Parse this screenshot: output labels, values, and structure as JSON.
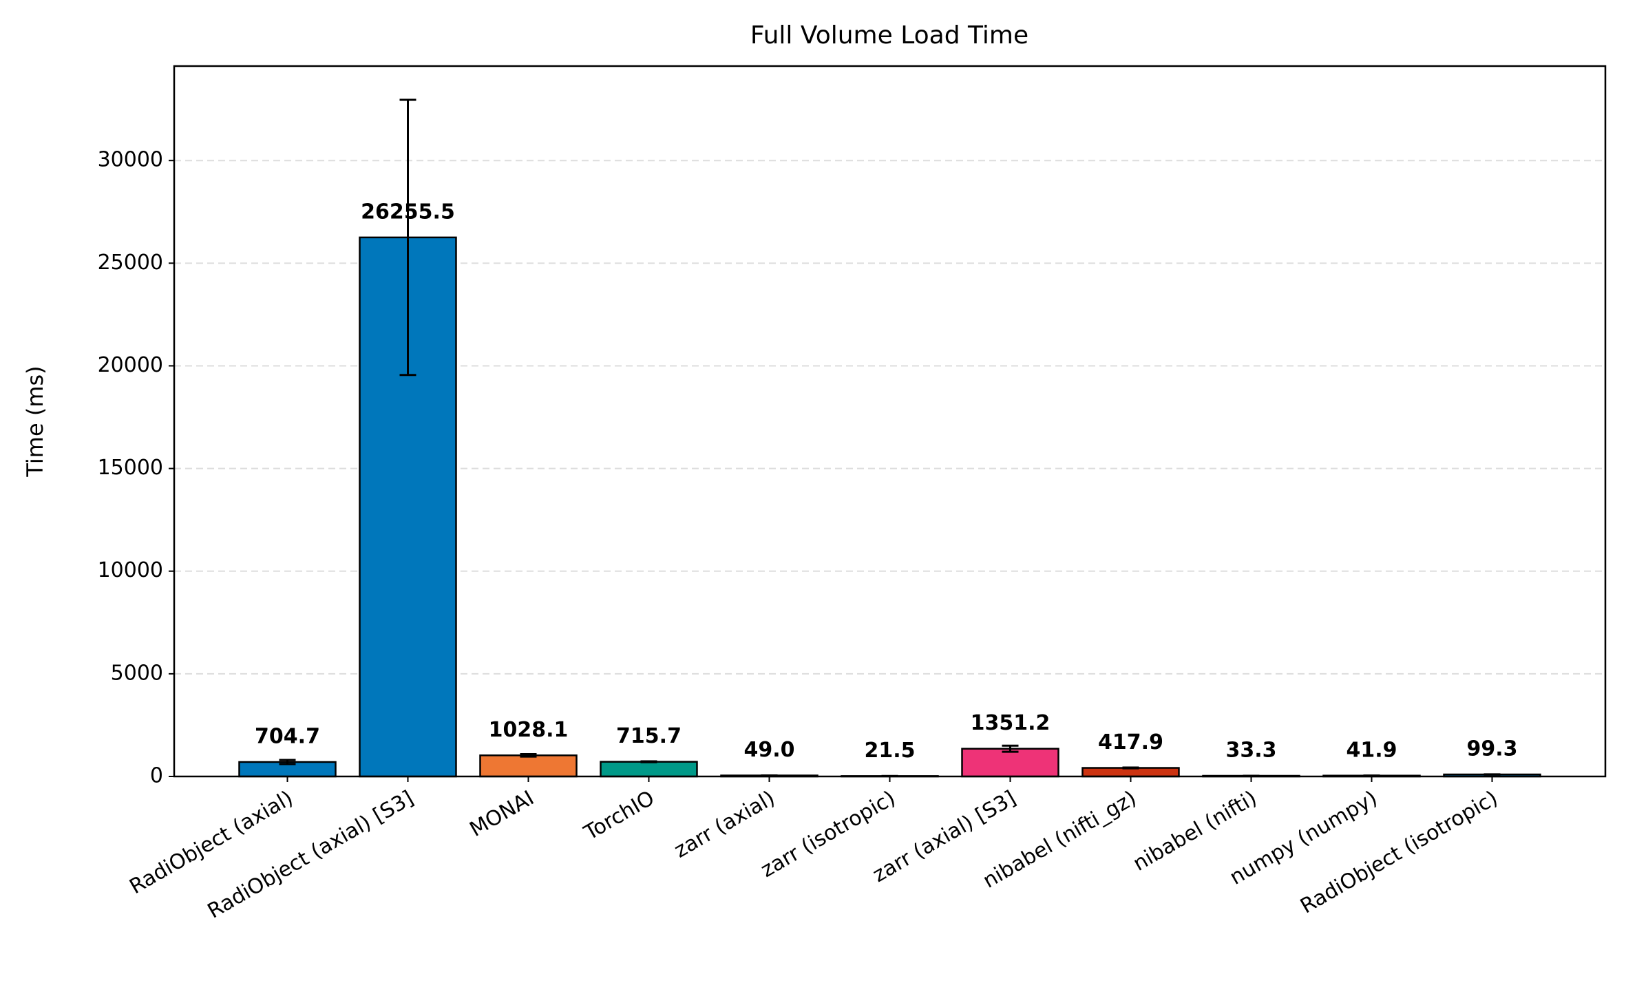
{
  "chart_data": {
    "type": "bar",
    "title": "Full Volume Load Time",
    "y_label": "Time (ms)",
    "categories": [
      "RadiObject (axial)",
      "RadiObject (axial) [S3]",
      "MONAI",
      "TorchIO",
      "zarr (axial)",
      "zarr (isotropic)",
      "zarr (axial) [S3]",
      "nibabel (nifti_gz)",
      "nibabel (nifti)",
      "numpy (numpy)",
      "RadiObject (isotropic)"
    ],
    "values": [
      704.7,
      26255.5,
      1028.1,
      715.7,
      49.0,
      21.5,
      1351.2,
      417.9,
      33.3,
      41.9,
      99.3
    ],
    "value_labels": [
      "704.7",
      "26255.5",
      "1028.1",
      "715.7",
      "49.0",
      "21.5",
      "1351.2",
      "417.9",
      "33.3",
      "41.9",
      "99.3"
    ],
    "errors": [
      100,
      6700,
      60,
      20,
      2,
      1,
      150,
      20,
      1,
      2,
      5
    ],
    "colors": [
      "#0077bb",
      "#0077bb",
      "#ee7733",
      "#009988",
      "#33bbee",
      "#33bbee",
      "#ee3377",
      "#cc3311",
      "#bbbbbb",
      "#009988",
      "#0077bb"
    ],
    "ylim": [
      0,
      34600
    ],
    "yticks": [
      0,
      5000,
      10000,
      15000,
      20000,
      25000,
      30000
    ],
    "grid": true
  }
}
